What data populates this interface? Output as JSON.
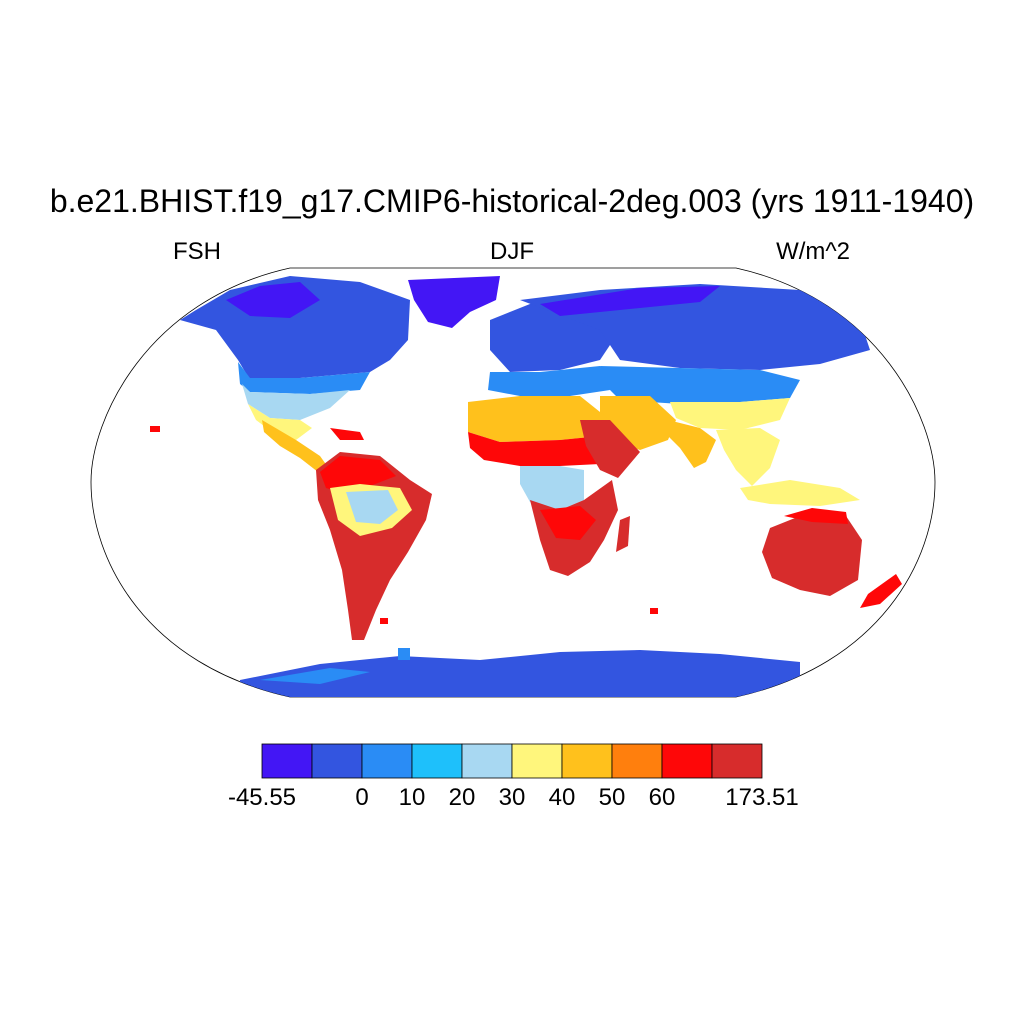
{
  "title": "b.e21.BHIST.f19_g17.CMIP6-historical-2deg.003 (yrs 1911-1940)",
  "left_label": "FSH",
  "center_label": "DJF",
  "right_label": "W/m^2",
  "colorbar": {
    "min": -45.55,
    "max": 173.51,
    "boundaries": [
      0,
      10,
      20,
      30,
      40,
      50,
      60
    ],
    "tick_labels": [
      "-45.55",
      "0",
      "10",
      "20",
      "30",
      "40",
      "50",
      "60",
      "173.51"
    ],
    "colors": [
      "#4316f5",
      "#3355e0",
      "#2a8cf5",
      "#1ec0fb",
      "#a8d8f2",
      "#fff67c",
      "#ffc11c",
      "#ff7f0d",
      "#fe0708",
      "#d72c2c"
    ]
  },
  "map_regions": [
    {
      "region": "Greenland",
      "bin": 0
    },
    {
      "region": "Canada",
      "bin": 1
    },
    {
      "region": "Siberia",
      "bin": 1
    },
    {
      "region": "Antarctica",
      "bin": 1
    },
    {
      "region": "USA",
      "bin": 3
    },
    {
      "region": "Europe",
      "bin": 2
    },
    {
      "region": "Central Asia",
      "bin": 3
    },
    {
      "region": "Amazon",
      "bin": 4
    },
    {
      "region": "Congo Basin",
      "bin": 4
    },
    {
      "region": "Mexico",
      "bin": 5
    },
    {
      "region": "India",
      "bin": 6
    },
    {
      "region": "Southeast Asia",
      "bin": 5
    },
    {
      "region": "Sahara",
      "bin": 6
    },
    {
      "region": "Sahel",
      "bin": 8
    },
    {
      "region": "East Africa",
      "bin": 9
    },
    {
      "region": "Southern Africa",
      "bin": 9
    },
    {
      "region": "Australia",
      "bin": 9
    },
    {
      "region": "Patagonia",
      "bin": 9
    }
  ]
}
